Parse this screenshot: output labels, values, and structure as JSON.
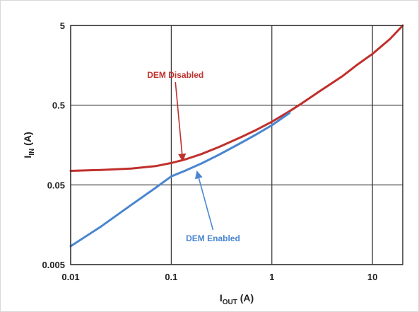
{
  "chart_data": {
    "type": "line",
    "xscale": "log",
    "yscale": "log",
    "xlim": [
      0.01,
      20
    ],
    "ylim": [
      0.005,
      5
    ],
    "grid": true,
    "xlabel": {
      "main": "I",
      "sub": "OUT",
      "unit": " (A)"
    },
    "ylabel": {
      "main": "I",
      "sub": "IN",
      "unit": " (A)"
    },
    "xticks": [
      {
        "value": 0.01,
        "label": "0.01"
      },
      {
        "value": 0.1,
        "label": "0.1"
      },
      {
        "value": 1,
        "label": "1"
      },
      {
        "value": 10,
        "label": "10"
      }
    ],
    "yticks": [
      {
        "value": 0.005,
        "label": "0.005"
      },
      {
        "value": 0.05,
        "label": "0.05"
      },
      {
        "value": 0.5,
        "label": "0.5"
      },
      {
        "value": 5,
        "label": "5"
      }
    ],
    "series": [
      {
        "name": "DEM Disabled",
        "color": "#c0302c",
        "x": [
          0.01,
          0.02,
          0.04,
          0.07,
          0.1,
          0.14,
          0.2,
          0.3,
          0.5,
          0.7,
          1,
          1.5,
          2,
          3,
          5,
          7,
          10,
          15,
          20
        ],
        "y": [
          0.075,
          0.077,
          0.08,
          0.086,
          0.094,
          0.105,
          0.122,
          0.15,
          0.2,
          0.245,
          0.31,
          0.42,
          0.53,
          0.75,
          1.15,
          1.6,
          2.2,
          3.4,
          5.0
        ]
      },
      {
        "name": "DEM Enabled",
        "color": "#4a86d0",
        "x": [
          0.01,
          0.02,
          0.04,
          0.07,
          0.1,
          0.14,
          0.2,
          0.3,
          0.5,
          0.7,
          1,
          1.5
        ],
        "y": [
          0.0085,
          0.015,
          0.028,
          0.046,
          0.064,
          0.076,
          0.093,
          0.12,
          0.17,
          0.215,
          0.28,
          0.4
        ]
      }
    ],
    "annotations": [
      {
        "text": "DEM Disabled",
        "color": "#c0302c",
        "text_at": [
          0.11,
          1.1
        ],
        "arrow_to": [
          0.13,
          0.1
        ]
      },
      {
        "text": "DEM Enabled",
        "color": "#4a86d0",
        "text_at": [
          0.26,
          0.0098
        ],
        "arrow_to": [
          0.18,
          0.074
        ]
      }
    ]
  }
}
